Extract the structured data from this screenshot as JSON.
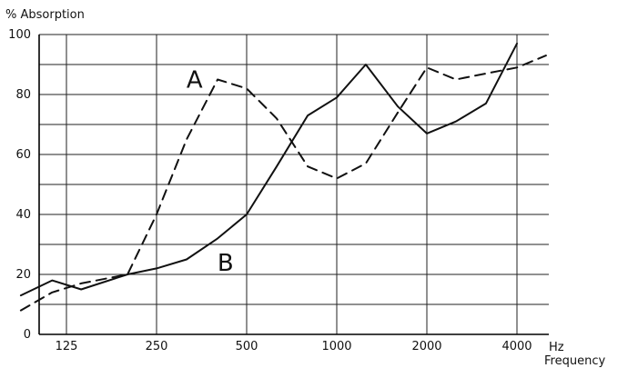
{
  "chart_data": {
    "type": "line",
    "ylabel": "% Absorption",
    "xunit": "Hz",
    "xlabel": "Frequency",
    "x_scale": "log2",
    "xlim": [
      88,
      5000
    ],
    "ylim": [
      0,
      100
    ],
    "xticks": [
      {
        "value": 125,
        "label": "125"
      },
      {
        "value": 250,
        "label": "250"
      },
      {
        "value": 500,
        "label": "500"
      },
      {
        "value": 1000,
        "label": "1000"
      },
      {
        "value": 2000,
        "label": "2000"
      },
      {
        "value": 4000,
        "label": "4000"
      }
    ],
    "yticks": [
      {
        "value": 0,
        "label": "0"
      },
      {
        "value": 20,
        "label": "20"
      },
      {
        "value": 40,
        "label": "40"
      },
      {
        "value": 60,
        "label": "60"
      },
      {
        "value": 80,
        "label": "80"
      },
      {
        "value": 100,
        "label": "100"
      }
    ],
    "grid": true,
    "series": [
      {
        "name": "A",
        "line_style": "dashed",
        "color": "#111111",
        "label_at": {
          "x": 335,
          "y": 85
        },
        "points": [
          {
            "x": 88,
            "y": 8
          },
          {
            "x": 112,
            "y": 14
          },
          {
            "x": 140,
            "y": 17
          },
          {
            "x": 200,
            "y": 20
          },
          {
            "x": 250,
            "y": 40
          },
          {
            "x": 315,
            "y": 65
          },
          {
            "x": 400,
            "y": 85
          },
          {
            "x": 500,
            "y": 82
          },
          {
            "x": 630,
            "y": 72
          },
          {
            "x": 800,
            "y": 56
          },
          {
            "x": 1000,
            "y": 52
          },
          {
            "x": 1250,
            "y": 57
          },
          {
            "x": 1600,
            "y": 74
          },
          {
            "x": 2000,
            "y": 89
          },
          {
            "x": 2500,
            "y": 85
          },
          {
            "x": 3150,
            "y": 87
          },
          {
            "x": 4000,
            "y": 89
          },
          {
            "x": 5000,
            "y": 93
          }
        ]
      },
      {
        "name": "B",
        "line_style": "solid",
        "color": "#111111",
        "label_at": {
          "x": 425,
          "y": 24
        },
        "points": [
          {
            "x": 88,
            "y": 13
          },
          {
            "x": 112,
            "y": 18
          },
          {
            "x": 140,
            "y": 15
          },
          {
            "x": 200,
            "y": 20
          },
          {
            "x": 250,
            "y": 22
          },
          {
            "x": 315,
            "y": 25
          },
          {
            "x": 400,
            "y": 32
          },
          {
            "x": 500,
            "y": 40
          },
          {
            "x": 630,
            "y": 56
          },
          {
            "x": 800,
            "y": 73
          },
          {
            "x": 1000,
            "y": 79
          },
          {
            "x": 1250,
            "y": 90
          },
          {
            "x": 1600,
            "y": 76
          },
          {
            "x": 2000,
            "y": 67
          },
          {
            "x": 2500,
            "y": 71
          },
          {
            "x": 3150,
            "y": 77
          },
          {
            "x": 4000,
            "y": 97
          }
        ]
      }
    ]
  }
}
